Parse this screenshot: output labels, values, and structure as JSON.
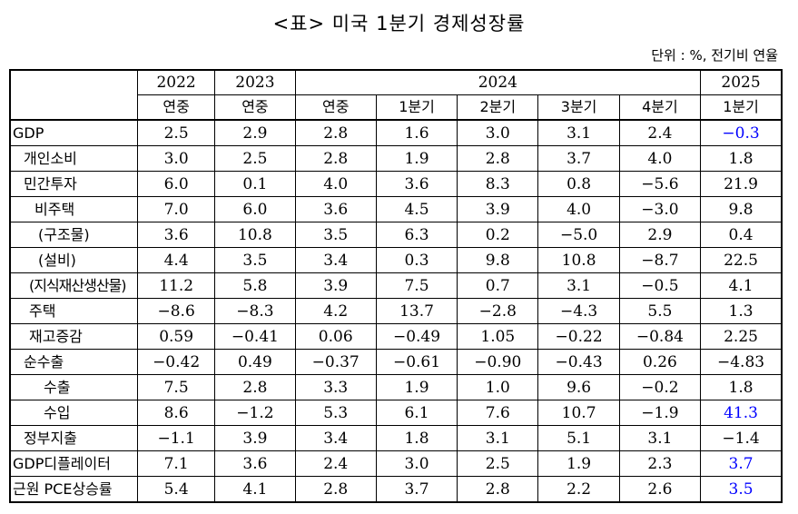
{
  "title": "<표> 미국 1분기 경제성장률",
  "unit": "단위 : %, 전기비 연율",
  "header": {
    "years": [
      "2022",
      "2023",
      "2024",
      "2025"
    ],
    "subs": [
      "연중",
      "연중",
      "연중",
      "1분기",
      "2분기",
      "3분기",
      "4분기",
      "1분기"
    ]
  },
  "rows": [
    {
      "label": "GDP",
      "values": [
        "2.5",
        "2.9",
        "2.8",
        "1.6",
        "3.0",
        "3.1",
        "2.4",
        "−0.3"
      ]
    },
    {
      "label": "개인소비",
      "values": [
        "3.0",
        "2.5",
        "2.8",
        "1.9",
        "2.8",
        "3.7",
        "4.0",
        "1.8"
      ]
    },
    {
      "label": "민간투자",
      "values": [
        "6.0",
        "0.1",
        "4.0",
        "3.6",
        "8.3",
        "0.8",
        "−5.6",
        "21.9"
      ]
    },
    {
      "label": "비주택",
      "values": [
        "7.0",
        "6.0",
        "3.6",
        "4.5",
        "3.9",
        "4.0",
        "−3.0",
        "9.8"
      ]
    },
    {
      "label": "(구조물)",
      "values": [
        "3.6",
        "10.8",
        "3.5",
        "6.3",
        "0.2",
        "−5.0",
        "2.9",
        "0.4"
      ]
    },
    {
      "label": "(설비)",
      "values": [
        "4.4",
        "3.5",
        "3.4",
        "0.3",
        "9.8",
        "10.8",
        "−8.7",
        "22.5"
      ]
    },
    {
      "label": "(지식재산생산물)",
      "values": [
        "11.2",
        "5.8",
        "3.9",
        "7.5",
        "0.7",
        "3.1",
        "−0.5",
        "4.1"
      ]
    },
    {
      "label": "주택",
      "values": [
        "−8.6",
        "−8.3",
        "4.2",
        "13.7",
        "−2.8",
        "−4.3",
        "5.5",
        "1.3"
      ]
    },
    {
      "label": "재고증감",
      "values": [
        "0.59",
        "−0.41",
        "0.06",
        "−0.49",
        "1.05",
        "−0.22",
        "−0.84",
        "2.25"
      ]
    },
    {
      "label": "순수출",
      "values": [
        "−0.42",
        "0.49",
        "−0.37",
        "−0.61",
        "−0.90",
        "−0.43",
        "0.26",
        "−4.83"
      ]
    },
    {
      "label": "수출",
      "values": [
        "7.5",
        "2.8",
        "3.3",
        "1.9",
        "1.0",
        "9.6",
        "−0.2",
        "1.8"
      ]
    },
    {
      "label": "수입",
      "values": [
        "8.6",
        "−1.2",
        "5.3",
        "6.1",
        "7.6",
        "10.7",
        "−1.9",
        "41.3"
      ]
    },
    {
      "label": "정부지출",
      "values": [
        "−1.1",
        "3.9",
        "3.4",
        "1.8",
        "3.1",
        "5.1",
        "3.1",
        "−1.4"
      ]
    },
    {
      "label": "GDP디플레이터",
      "values": [
        "7.1",
        "3.6",
        "2.4",
        "3.0",
        "2.5",
        "1.9",
        "2.3",
        "3.7"
      ]
    },
    {
      "label": "근원 PCE상승률",
      "values": [
        "5.4",
        "4.1",
        "2.8",
        "3.7",
        "2.8",
        "2.2",
        "2.6",
        "3.5"
      ]
    }
  ],
  "highlight_color": "#0000ff"
}
